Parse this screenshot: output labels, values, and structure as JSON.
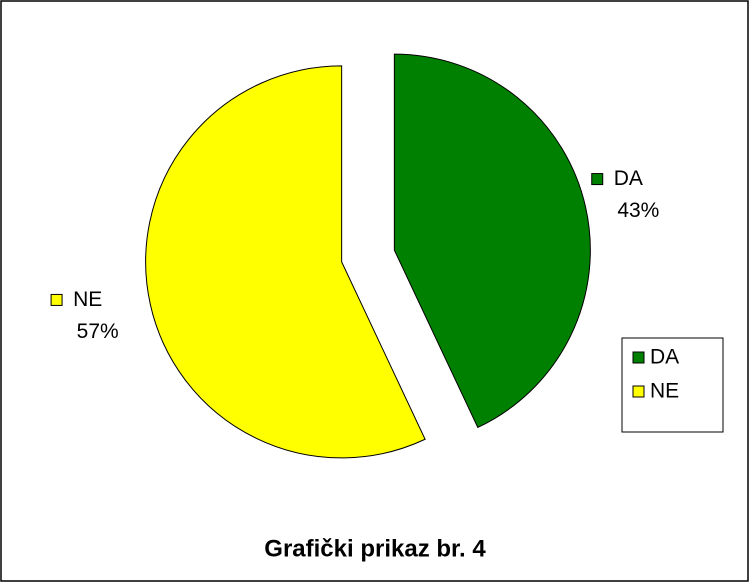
{
  "chart_data": {
    "type": "pie",
    "title": "Grafički prikaz br. 4",
    "categories": [
      "DA",
      "NE"
    ],
    "values": [
      43,
      57
    ],
    "value_labels": [
      "43%",
      "57%"
    ],
    "colors": [
      "#008000",
      "#ffff00"
    ],
    "legend": "right"
  }
}
